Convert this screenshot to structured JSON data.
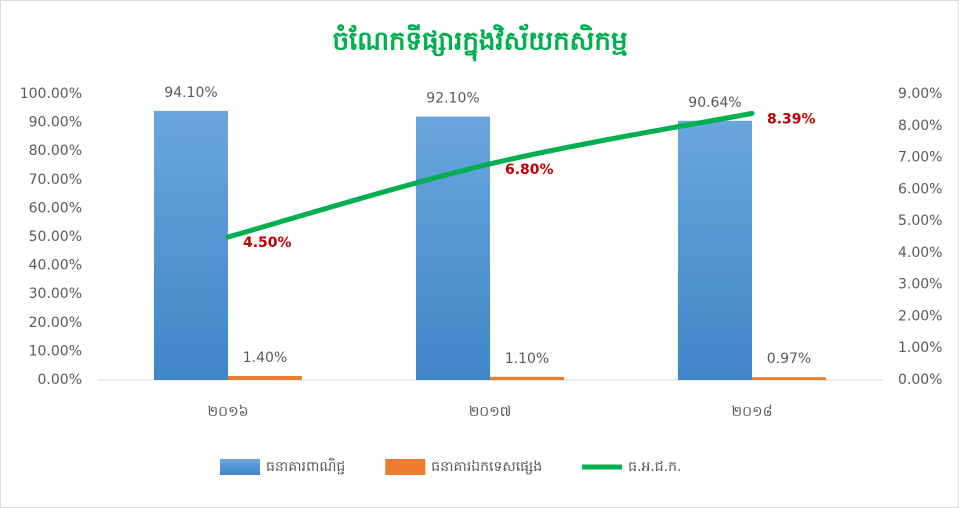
{
  "chart_data": {
    "type": "bar",
    "title": "ចំណែកទីផ្សារក្នុងវិស័យកសិកម្ម",
    "categories": [
      "២០១៦",
      "២០១៧",
      "២០១៨"
    ],
    "series": [
      {
        "name": "ធនាគារពាណិជ្ជ",
        "color": "#5b9bd5",
        "type": "bar",
        "values": [
          94.1,
          92.1,
          90.64
        ],
        "value_labels": [
          "94.10%",
          "92.10%",
          "90.64%"
        ]
      },
      {
        "name": "ធនាគារឯកទេសផ្សេង",
        "color": "#ed7d31",
        "type": "bar",
        "values": [
          1.4,
          1.1,
          0.97
        ],
        "value_labels": [
          "1.40%",
          "1.10%",
          "0.97%"
        ]
      },
      {
        "name": "ធ.អ.ជ.ក.",
        "color": "#00b050",
        "type": "line",
        "axis": "y2",
        "values": [
          4.5,
          6.8,
          8.39
        ],
        "value_labels": [
          "4.50%",
          "6.80%",
          "8.39%"
        ]
      }
    ],
    "ylim": [
      0,
      100
    ],
    "yticks": [
      {
        "value": 0,
        "label": "0.00%"
      },
      {
        "value": 10,
        "label": "10.00%"
      },
      {
        "value": 20,
        "label": "20.00%"
      },
      {
        "value": 30,
        "label": "30.00%"
      },
      {
        "value": 40,
        "label": "40.00%"
      },
      {
        "value": 50,
        "label": "50.00%"
      },
      {
        "value": 60,
        "label": "60.00%"
      },
      {
        "value": 70,
        "label": "70.00%"
      },
      {
        "value": 80,
        "label": "80.00%"
      },
      {
        "value": 90,
        "label": "90.00%"
      },
      {
        "value": 100,
        "label": "100.00%"
      }
    ],
    "y2lim": [
      0,
      9
    ],
    "y2ticks": [
      {
        "value": 0,
        "label": "0.00%"
      },
      {
        "value": 1,
        "label": "1.00%"
      },
      {
        "value": 2,
        "label": "2.00%"
      },
      {
        "value": 3,
        "label": "3.00%"
      },
      {
        "value": 4,
        "label": "4.00%"
      },
      {
        "value": 5,
        "label": "5.00%"
      },
      {
        "value": 6,
        "label": "6.00%"
      },
      {
        "value": 7,
        "label": "7.00%"
      },
      {
        "value": 8,
        "label": "8.00%"
      },
      {
        "value": 9,
        "label": "9.00%"
      }
    ],
    "legend": "bottom"
  }
}
